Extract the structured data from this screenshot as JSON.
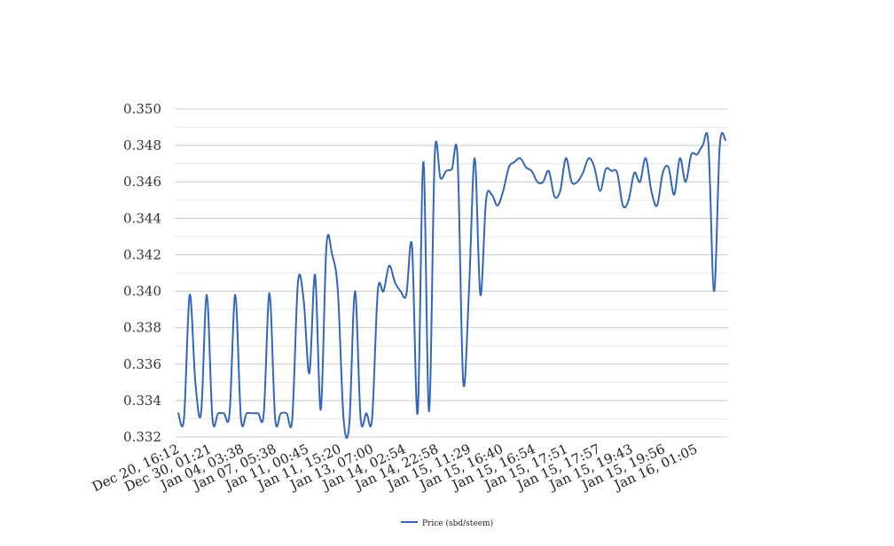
{
  "chart_data": {
    "type": "line",
    "title": "",
    "xlabel": "",
    "ylabel": "",
    "ylim": [
      0.332,
      0.35
    ],
    "yticks": [
      "0.332",
      "0.334",
      "0.336",
      "0.338",
      "0.340",
      "0.342",
      "0.344",
      "0.346",
      "0.348",
      "0.350"
    ],
    "xtick_labels": [
      "Dec 20, 16:12",
      "Dec 30, 01:21",
      "Jan 04, 03:38",
      "Jan 07, 05:38",
      "Jan 11, 00:45",
      "Jan 11, 15:20",
      "Jan 13, 07:00",
      "Jan 14, 02:54",
      "Jan 14, 22:58",
      "Jan 15, 11:29",
      "Jan 15, 16:40",
      "Jan 15, 16:54",
      "Jan 15, 17:51",
      "Jan 15, 17:57",
      "Jan 15, 19:43",
      "Jan 15, 19:56",
      "Jan 16, 01:05"
    ],
    "grid": true,
    "legend_position": "bottom-center",
    "series": [
      {
        "name": "Price (sbd/steem)",
        "color": "#3366bb",
        "values": [
          0.3333,
          0.333,
          0.3398,
          0.335,
          0.3333,
          0.3398,
          0.333,
          0.3333,
          0.3333,
          0.3333,
          0.3398,
          0.333,
          0.3333,
          0.3333,
          0.3333,
          0.3333,
          0.3399,
          0.333,
          0.3333,
          0.3333,
          0.333,
          0.3405,
          0.3395,
          0.3355,
          0.3409,
          0.3335,
          0.3425,
          0.342,
          0.34,
          0.333,
          0.3327,
          0.34,
          0.333,
          0.3333,
          0.333,
          0.34,
          0.34,
          0.3414,
          0.3405,
          0.34,
          0.3398,
          0.3425,
          0.3333,
          0.3471,
          0.3334,
          0.3475,
          0.3462,
          0.3466,
          0.3467,
          0.3473,
          0.335,
          0.34,
          0.3473,
          0.3398,
          0.345,
          0.3453,
          0.3447,
          0.3455,
          0.3468,
          0.3471,
          0.3473,
          0.3468,
          0.3466,
          0.346,
          0.346,
          0.3466,
          0.3452,
          0.3455,
          0.3473,
          0.346,
          0.346,
          0.3465,
          0.3473,
          0.3468,
          0.3455,
          0.3467,
          0.3466,
          0.3465,
          0.3447,
          0.345,
          0.3465,
          0.346,
          0.3473,
          0.3455,
          0.3447,
          0.3465,
          0.3468,
          0.3453,
          0.3473,
          0.346,
          0.3475,
          0.3475,
          0.348,
          0.3481,
          0.34,
          0.348,
          0.3483
        ]
      }
    ]
  }
}
